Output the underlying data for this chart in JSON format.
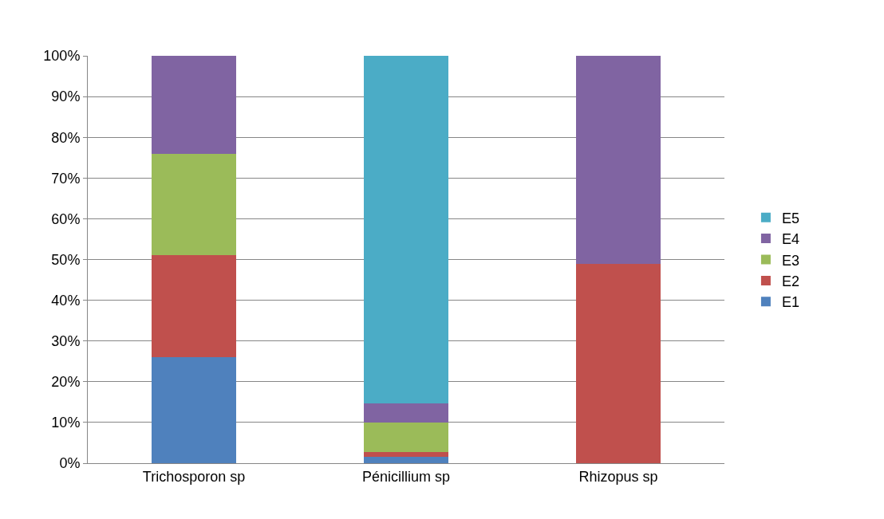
{
  "chart_data": {
    "type": "bar",
    "stacked": true,
    "categories": [
      "Trichosporon sp",
      "Pénicillium sp",
      "Rhizopus sp"
    ],
    "series": [
      {
        "name": "E1",
        "color": "#4f81bd",
        "values": [
          26,
          1.5,
          0
        ]
      },
      {
        "name": "E2",
        "color": "#c0504d",
        "values": [
          25,
          1.3,
          49
        ]
      },
      {
        "name": "E3",
        "color": "#9bbb59",
        "values": [
          25,
          7.2,
          0
        ]
      },
      {
        "name": "E4",
        "color": "#8064a2",
        "values": [
          24,
          4.6,
          51
        ]
      },
      {
        "name": "E5",
        "color": "#4bacc6",
        "values": [
          0,
          85.4,
          0
        ]
      }
    ],
    "ylim": [
      0,
      100
    ],
    "yticks": [
      {
        "value": 0,
        "label": "0%"
      },
      {
        "value": 10,
        "label": "10%"
      },
      {
        "value": 20,
        "label": "20%"
      },
      {
        "value": 30,
        "label": "30%"
      },
      {
        "value": 40,
        "label": "40%"
      },
      {
        "value": 50,
        "label": "50%"
      },
      {
        "value": 60,
        "label": "60%"
      },
      {
        "value": 70,
        "label": "70%"
      },
      {
        "value": 80,
        "label": "80%"
      },
      {
        "value": 90,
        "label": "90%"
      },
      {
        "value": 100,
        "label": "100%"
      }
    ],
    "grid": "y",
    "legend": "right"
  }
}
